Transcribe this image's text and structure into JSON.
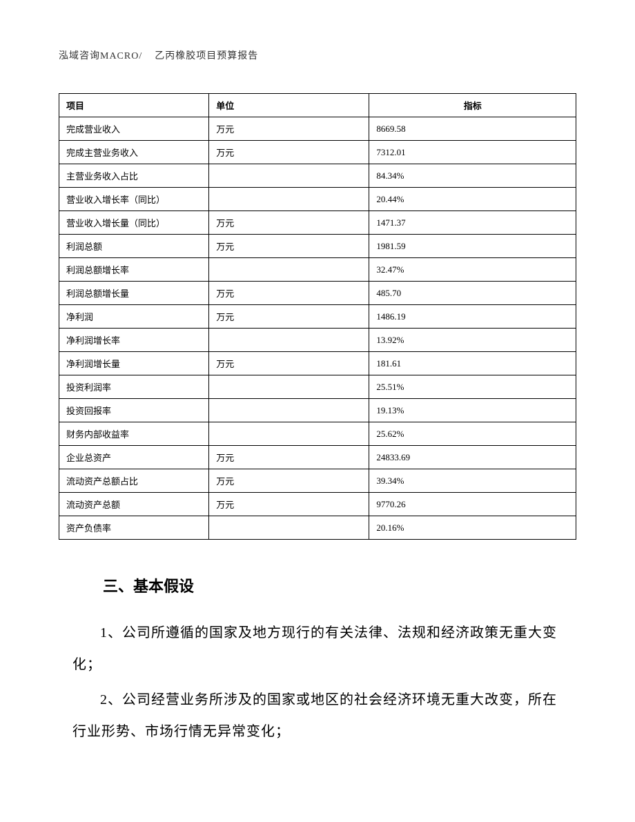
{
  "header": {
    "company": "泓域咨询MACRO/",
    "title": "乙丙橡胶项目预算报告"
  },
  "table": {
    "columns": [
      "项目",
      "单位",
      "指标"
    ],
    "rows": [
      [
        "完成营业收入",
        "万元",
        "8669.58"
      ],
      [
        "完成主营业务收入",
        "万元",
        "7312.01"
      ],
      [
        "主营业务收入占比",
        "",
        "84.34%"
      ],
      [
        "营业收入增长率（同比）",
        "",
        "20.44%"
      ],
      [
        "营业收入增长量（同比）",
        "万元",
        "1471.37"
      ],
      [
        "利润总额",
        "万元",
        "1981.59"
      ],
      [
        "利润总额增长率",
        "",
        "32.47%"
      ],
      [
        "利润总额增长量",
        "万元",
        "485.70"
      ],
      [
        "净利润",
        "万元",
        "1486.19"
      ],
      [
        "净利润增长率",
        "",
        "13.92%"
      ],
      [
        "净利润增长量",
        "万元",
        "181.61"
      ],
      [
        "投资利润率",
        "",
        "25.51%"
      ],
      [
        "投资回报率",
        "",
        "19.13%"
      ],
      [
        "财务内部收益率",
        "",
        "25.62%"
      ],
      [
        "企业总资产",
        "万元",
        "24833.69"
      ],
      [
        "流动资产总额占比",
        "万元",
        "39.34%"
      ],
      [
        "流动资产总额",
        "万元",
        "9770.26"
      ],
      [
        "资产负债率",
        "",
        "20.16%"
      ]
    ]
  },
  "section": {
    "title": "三、基本假设",
    "paragraphs": [
      "1、公司所遵循的国家及地方现行的有关法律、法规和经济政策无重大变化；",
      "2、公司经营业务所涉及的国家或地区的社会经济环境无重大改变，所在行业形势、市场行情无异常变化；"
    ]
  }
}
